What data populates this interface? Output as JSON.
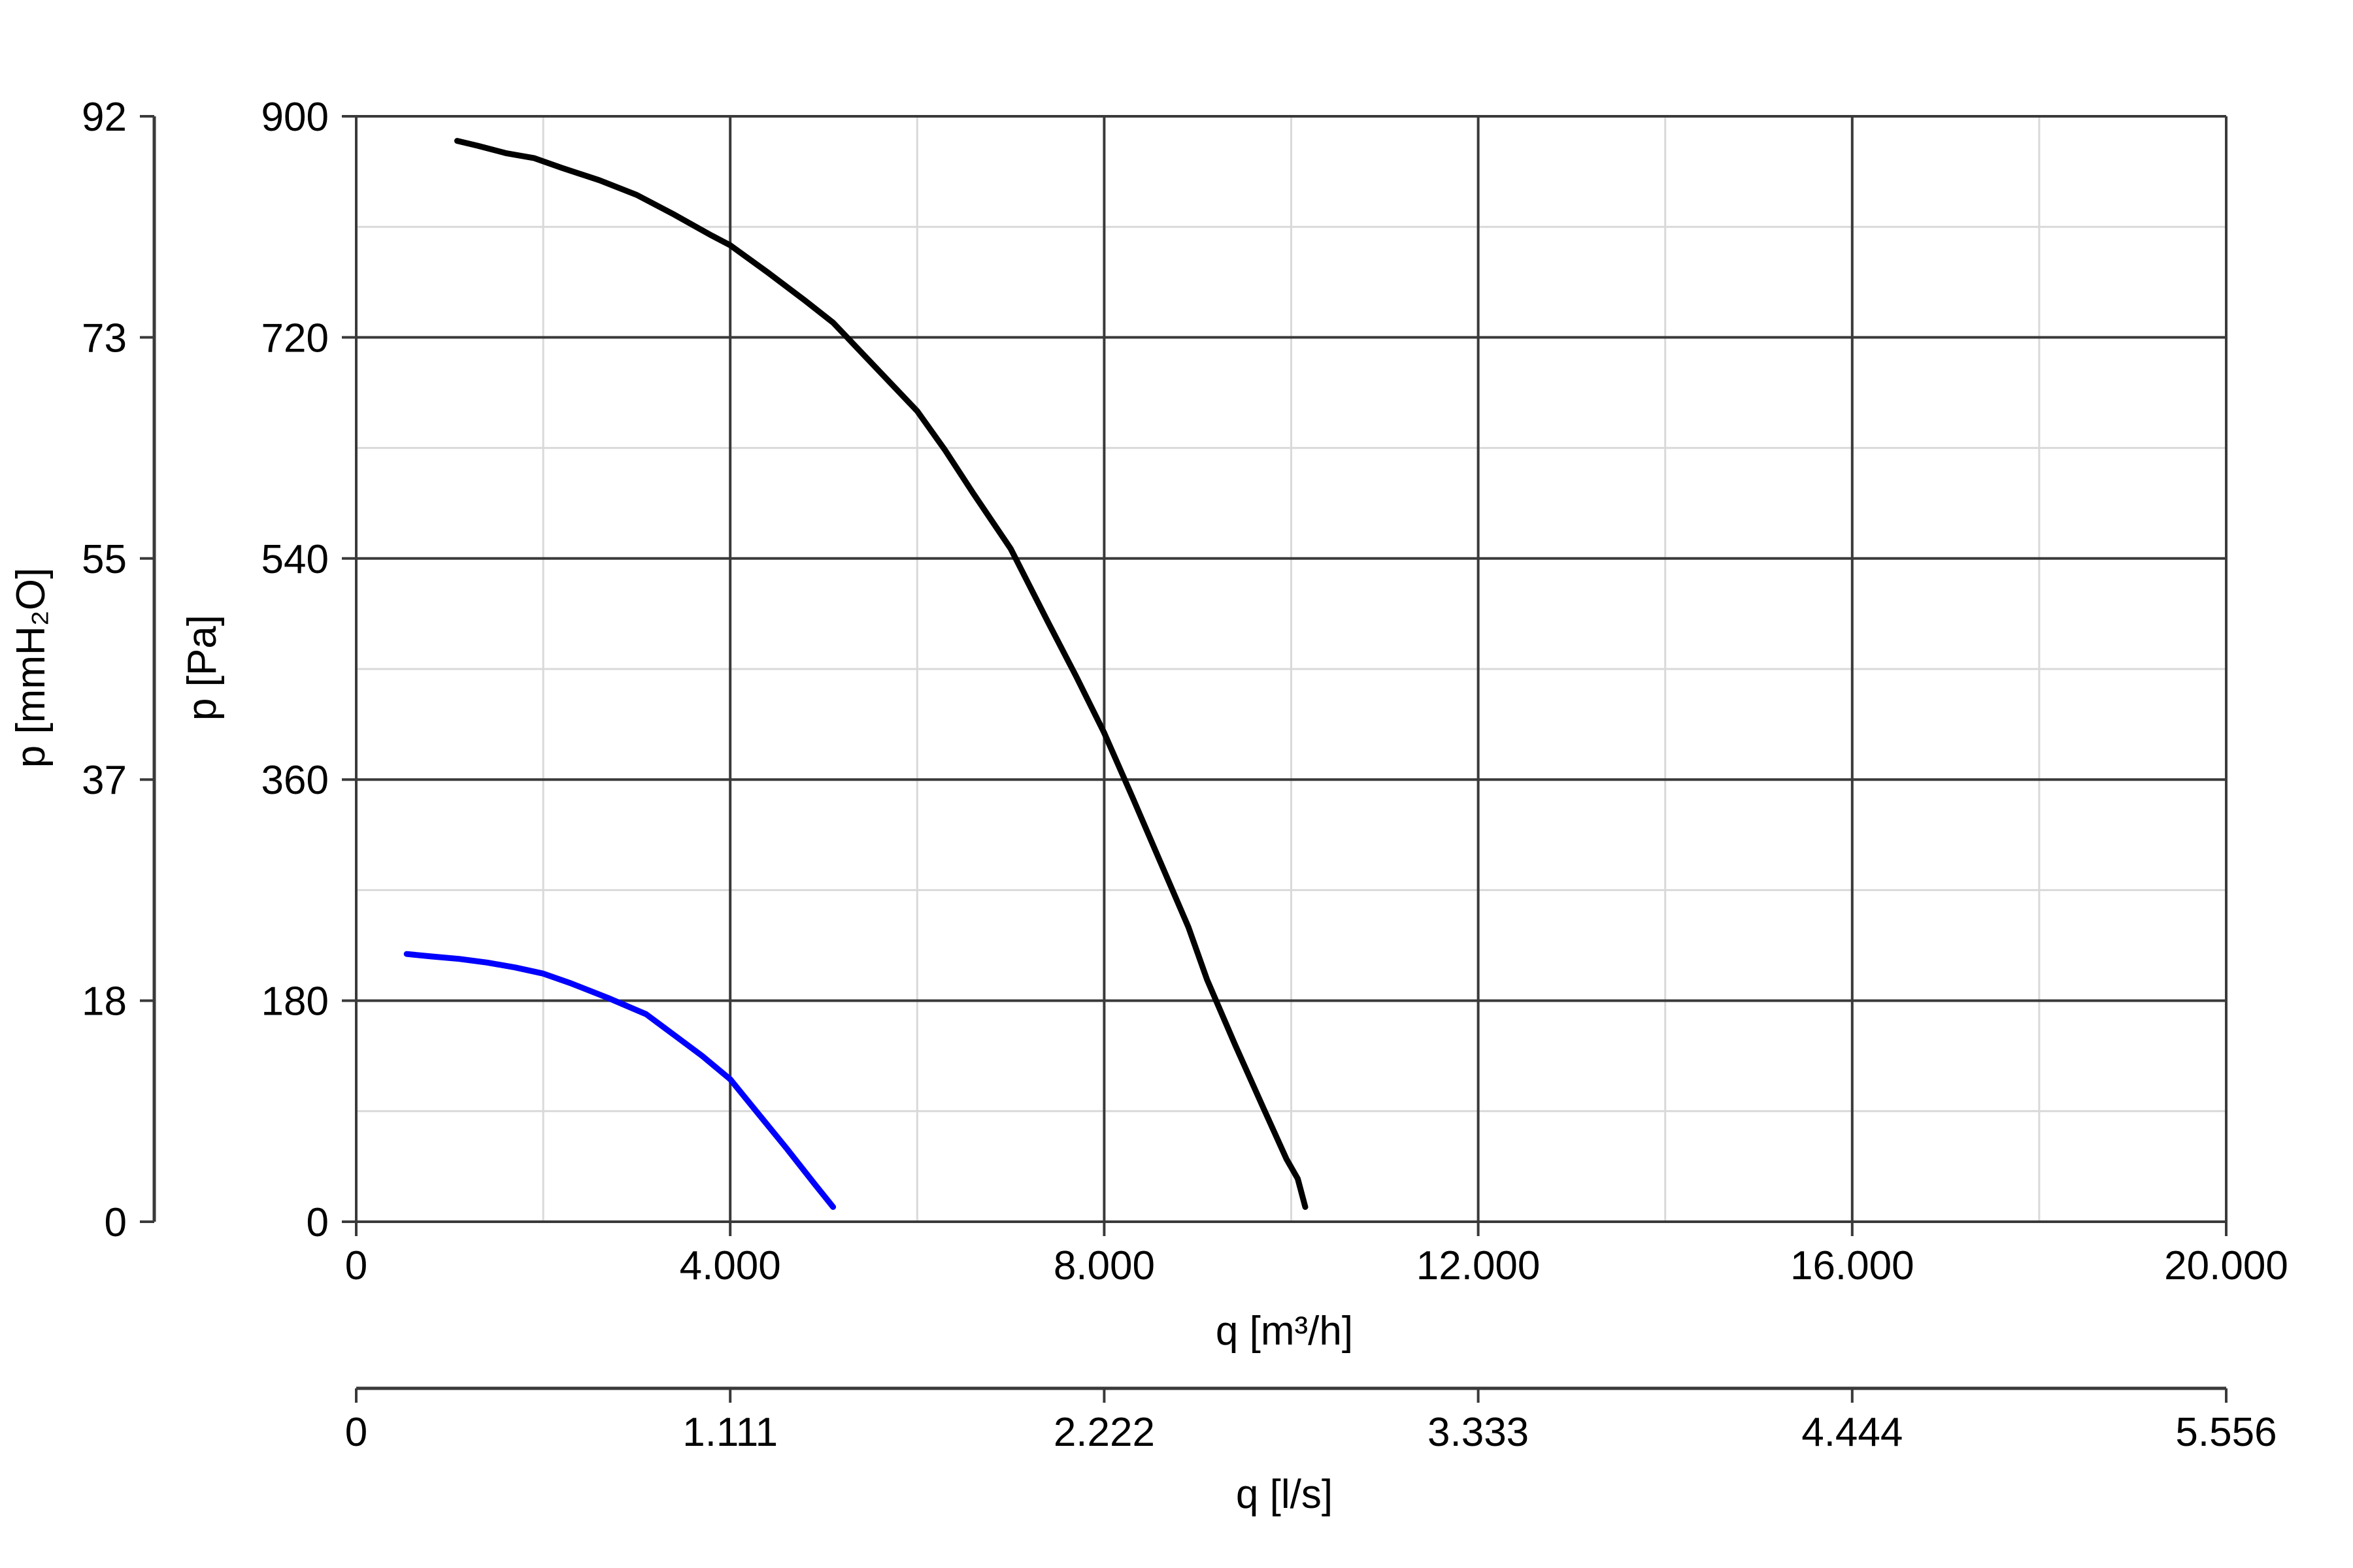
{
  "chart_data": {
    "type": "line",
    "x_unit_label": "q [m³/h]",
    "x_secondary_label": "q [l/s]",
    "y_label": "p [Pa]",
    "y_secondary_label": "p [mmH₂O]",
    "xlim": [
      0,
      20000
    ],
    "ylim": [
      0,
      900
    ],
    "x_major_ticks": [
      0,
      4000,
      8000,
      12000,
      16000,
      20000
    ],
    "x_minor_ticks": [
      2000,
      6000,
      10000,
      14000,
      18000
    ],
    "x_tick_labels": [
      "0",
      "4.000",
      "8.000",
      "12.000",
      "16.000",
      "20.000"
    ],
    "x2_tick_labels": [
      "0",
      "1.111",
      "2.222",
      "3.333",
      "4.444",
      "5.556"
    ],
    "y_major_ticks": [
      0,
      180,
      360,
      540,
      720,
      900
    ],
    "y_minor_ticks": [
      90,
      270,
      450,
      630,
      810
    ],
    "y_tick_labels": [
      "0",
      "180",
      "360",
      "540",
      "720",
      "900"
    ],
    "y2_tick_labels": [
      "0",
      "18",
      "37",
      "55",
      "73",
      "92"
    ],
    "grid": true,
    "series": [
      {
        "color": "#000000",
        "x": [
          1080,
          1300,
          1600,
          1900,
          2200,
          2600,
          3000,
          3400,
          3800,
          4000,
          4400,
          4800,
          5100,
          5400,
          5800,
          6000,
          6300,
          6600,
          7000,
          7400,
          7700,
          8000,
          8300,
          8600,
          8900,
          9100,
          9400,
          9700,
          9950,
          10070,
          10150
        ],
        "y": [
          880,
          876,
          870,
          866,
          858,
          848,
          836,
          820,
          803,
          795,
          773,
          750,
          732,
          708,
          676,
          660,
          628,
          593,
          548,
          488,
          444,
          398,
          346,
          293,
          240,
          197,
          144,
          93,
          51,
          35,
          12
        ]
      },
      {
        "color": "#0000ff",
        "x": [
          540,
          800,
          1100,
          1400,
          1700,
          2000,
          2300,
          2700,
          3100,
          3400,
          3700,
          4000,
          4300,
          4600,
          4900,
          5100
        ],
        "y": [
          218,
          216,
          214,
          211,
          207,
          202,
          194,
          182,
          169,
          152,
          135,
          116,
          88,
          60,
          31,
          12
        ]
      }
    ]
  }
}
